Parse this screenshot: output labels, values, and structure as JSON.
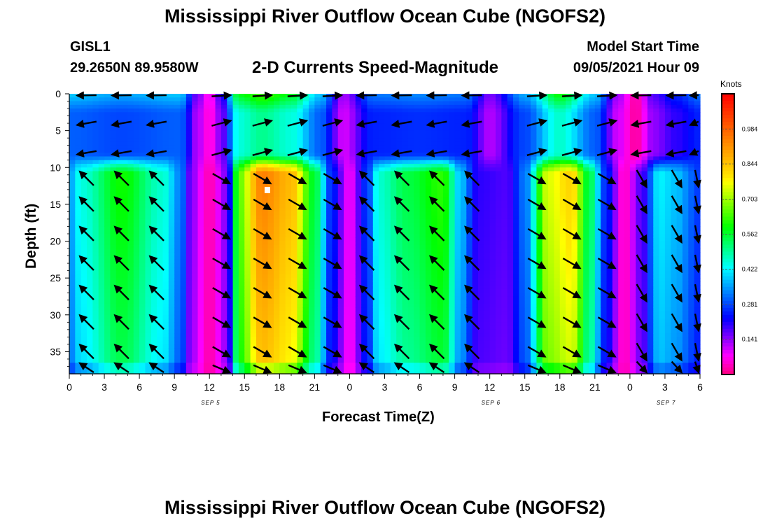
{
  "header": {
    "title_top": "Mississippi River Outflow Ocean Cube (NGOFS2)",
    "station_id": "GISL1",
    "station_coords": "29.2650N  89.9580W",
    "subtitle": "2-D Currents Speed-Magnitude",
    "model_label": "Model Start Time",
    "model_time": "09/05/2021 Hour 09",
    "title_bottom": "Mississippi River Outflow Ocean Cube (NGOFS2)"
  },
  "chart_data": {
    "type": "heatmap",
    "title": "2-D Currents Speed-Magnitude",
    "xlabel": "Forecast Time(Z)",
    "ylabel": "Depth (ft)",
    "x_hours_range": [
      0,
      54
    ],
    "x_tick_labels": [
      "0",
      "3",
      "6",
      "9",
      "12",
      "15",
      "18",
      "21",
      "0",
      "3",
      "6",
      "9",
      "12",
      "15",
      "18",
      "21",
      "0",
      "3",
      "6"
    ],
    "date_labels": [
      {
        "label": "SEP 5",
        "hour": 12
      },
      {
        "label": "SEP 6",
        "hour": 36
      },
      {
        "label": "SEP 7",
        "hour": 51
      }
    ],
    "y_ticks": [
      0,
      5,
      10,
      15,
      20,
      25,
      30,
      35
    ],
    "ylim": [
      0,
      38
    ],
    "y_inverted": true,
    "colorbar": {
      "label": "Knots",
      "range": [
        0,
        1.125
      ],
      "tick_labels": [
        "0.984",
        "0.844",
        "0.703",
        "0.562",
        "0.422",
        "0.281",
        "0.141"
      ],
      "tick_values": [
        0.984,
        0.844,
        0.703,
        0.562,
        0.422,
        0.281,
        0.141
      ]
    },
    "surface_layer_depth_ft": 8,
    "lower_layer": [
      {
        "hour": 0.0,
        "v": 0.35
      },
      {
        "hour": 1.0,
        "v": 0.45
      },
      {
        "hour": 4.5,
        "v": 0.6
      },
      {
        "hour": 8.0,
        "v": 0.46
      },
      {
        "hour": 9.5,
        "v": 0.33
      },
      {
        "hour": 10.5,
        "v": 0.14
      },
      {
        "hour": 12.0,
        "v": 0.03
      },
      {
        "hour": 13.5,
        "v": 0.15
      },
      {
        "hour": 14.5,
        "v": 0.66
      },
      {
        "hour": 16.5,
        "v": 0.94
      },
      {
        "hour": 19.0,
        "v": 0.86
      },
      {
        "hour": 21.0,
        "v": 0.56
      },
      {
        "hour": 22.5,
        "v": 0.25
      },
      {
        "hour": 24.0,
        "v": 0.08
      },
      {
        "hour": 25.5,
        "v": 0.27
      },
      {
        "hour": 26.5,
        "v": 0.46
      },
      {
        "hour": 29.0,
        "v": 0.55
      },
      {
        "hour": 32.0,
        "v": 0.62
      },
      {
        "hour": 33.5,
        "v": 0.38
      },
      {
        "hour": 35.0,
        "v": 0.2
      },
      {
        "hour": 37.5,
        "v": 0.18
      },
      {
        "hour": 39.0,
        "v": 0.32
      },
      {
        "hour": 41.0,
        "v": 0.75
      },
      {
        "hour": 43.0,
        "v": 0.82
      },
      {
        "hour": 44.5,
        "v": 0.55
      },
      {
        "hour": 46.0,
        "v": 0.25
      },
      {
        "hour": 47.5,
        "v": 0.04
      },
      {
        "hour": 49.0,
        "v": 0.18
      },
      {
        "hour": 50.5,
        "v": 0.42
      },
      {
        "hour": 52.0,
        "v": 0.38
      },
      {
        "hour": 53.5,
        "v": 0.3
      },
      {
        "hour": 54.0,
        "v": 0.25
      }
    ],
    "surface_layer": [
      {
        "hour": 0.0,
        "v": 0.3
      },
      {
        "hour": 4.5,
        "v": 0.28
      },
      {
        "hour": 9.5,
        "v": 0.3
      },
      {
        "hour": 11.0,
        "v": 0.12
      },
      {
        "hour": 12.0,
        "v": 0.05
      },
      {
        "hour": 13.0,
        "v": 0.15
      },
      {
        "hour": 14.5,
        "v": 0.45
      },
      {
        "hour": 16.5,
        "v": 0.5
      },
      {
        "hour": 19.0,
        "v": 0.45
      },
      {
        "hour": 21.5,
        "v": 0.3
      },
      {
        "hour": 23.5,
        "v": 0.1
      },
      {
        "hour": 26.0,
        "v": 0.25
      },
      {
        "hour": 30.0,
        "v": 0.26
      },
      {
        "hour": 34.0,
        "v": 0.25
      },
      {
        "hour": 36.0,
        "v": 0.12
      },
      {
        "hour": 39.0,
        "v": 0.28
      },
      {
        "hour": 42.0,
        "v": 0.46
      },
      {
        "hour": 45.0,
        "v": 0.3
      },
      {
        "hour": 47.0,
        "v": 0.1
      },
      {
        "hour": 48.5,
        "v": 0.02
      },
      {
        "hour": 50.0,
        "v": 0.14
      },
      {
        "hour": 52.0,
        "v": 0.2
      },
      {
        "hour": 54.0,
        "v": 0.25
      }
    ],
    "arrow_hours": [
      1.5,
      4.5,
      7.5,
      13,
      16.5,
      19.5,
      22.5,
      25.5,
      28.5,
      31.5,
      34.5,
      40,
      43,
      46,
      49,
      52,
      54
    ],
    "arrow_depths": [
      0,
      4,
      8,
      11.5,
      15,
      19,
      23,
      27,
      31,
      35,
      37.5
    ],
    "arrow_directions": [
      {
        "from_hour": 0,
        "to_hour": 10,
        "surface_deg": 190,
        "lower_deg": 135
      },
      {
        "from_hour": 10,
        "to_hour": 24,
        "surface_deg": 15,
        "lower_deg": 330
      },
      {
        "from_hour": 24,
        "to_hour": 37,
        "surface_deg": 190,
        "lower_deg": 135
      },
      {
        "from_hour": 37,
        "to_hour": 48,
        "surface_deg": 15,
        "lower_deg": 330
      },
      {
        "from_hour": 48,
        "to_hour": 54,
        "surface_deg": 190,
        "lower_deg": 300
      }
    ]
  },
  "colors": {
    "arrow": "#000000",
    "marker": "#ffffff"
  }
}
